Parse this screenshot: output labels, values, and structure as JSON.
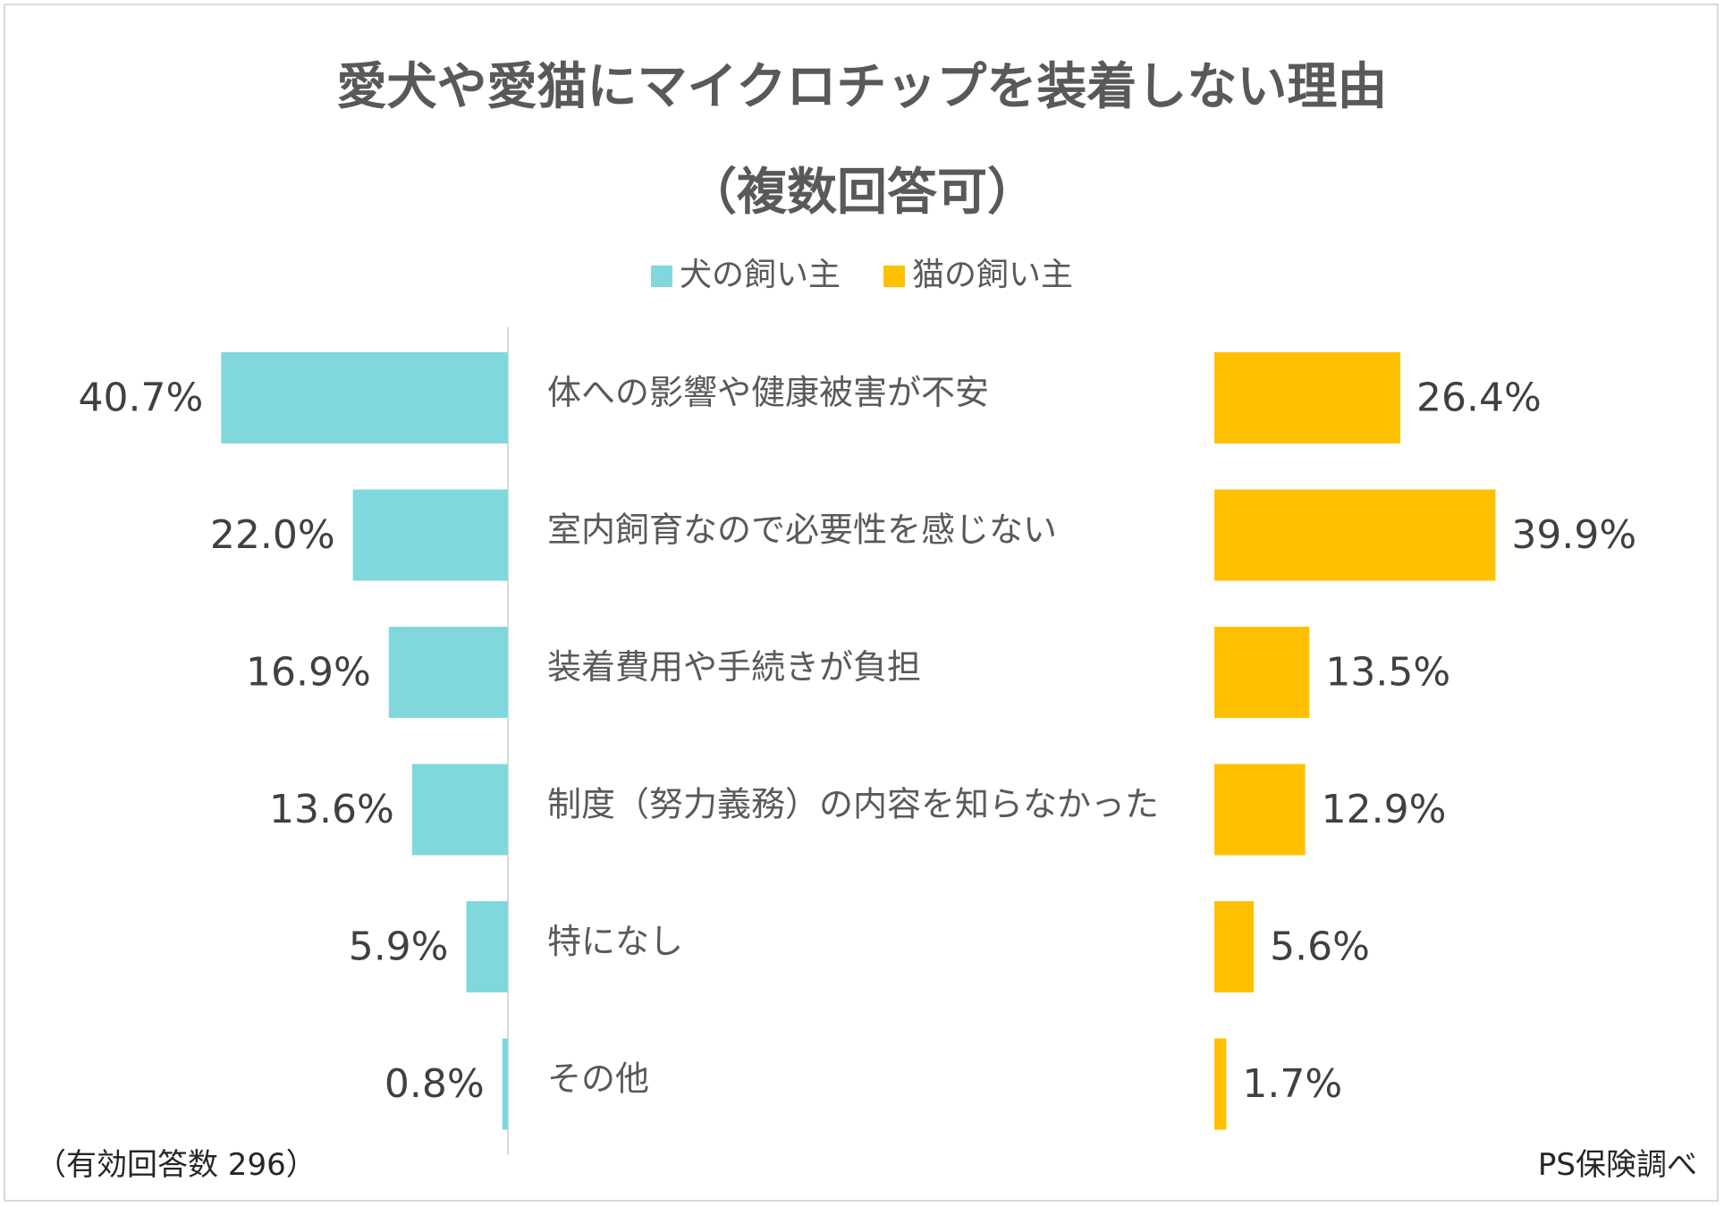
{
  "chart_data": {
    "type": "bar",
    "title": "愛犬や愛猫にマイクロチップを装着しない理由",
    "subtitle": "（複数回答可）",
    "categories": [
      "体への影響や健康被害が不安",
      "室内飼育なので必要性を感じない",
      "装着費用や手続きが負担",
      "制度（努力義務）の内容を知らなかった",
      "特になし",
      "その他"
    ],
    "series": [
      {
        "name": "犬の飼い主",
        "color": "#80d8dc",
        "values": [
          40.7,
          22.0,
          16.9,
          13.6,
          5.9,
          0.8
        ],
        "labels": [
          "40.7%",
          "22.0%",
          "16.9%",
          "13.6%",
          "5.9%",
          "0.8%"
        ]
      },
      {
        "name": "猫の飼い主",
        "color": "#ffc000",
        "values": [
          26.4,
          39.9,
          13.5,
          12.9,
          5.6,
          1.7
        ],
        "labels": [
          "26.4%",
          "39.9%",
          "13.5%",
          "12.9%",
          "5.6%",
          "1.7%"
        ]
      }
    ],
    "unit": "%",
    "legend": "top-center"
  },
  "footer": {
    "note": "（有効回答数 296）",
    "source": "PS保険調べ"
  },
  "colors": {
    "axis": "#d9d9d9",
    "text": "#404040",
    "title": "#595959"
  }
}
